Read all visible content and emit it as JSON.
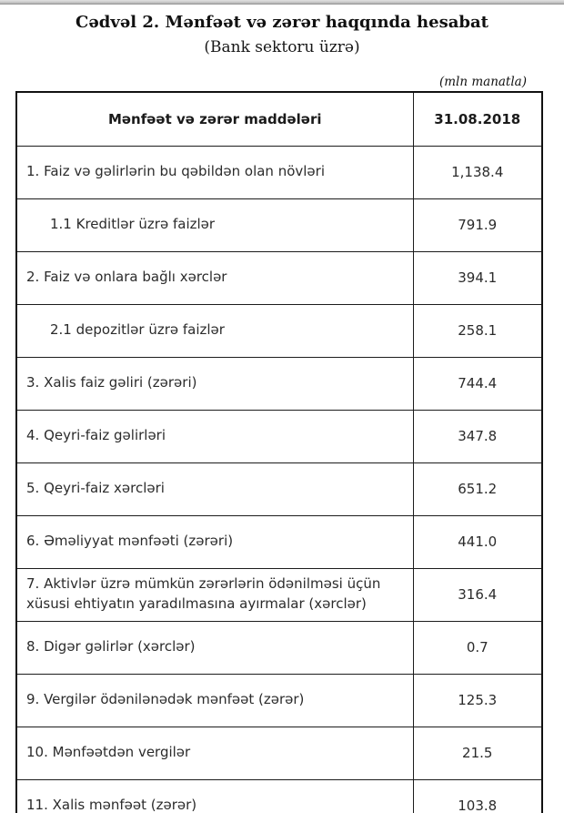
{
  "header": {
    "title": "Cədvəl 2. Mənfəət və zərər haqqında hesabat",
    "subtitle": "(Bank sektoru üzrə)"
  },
  "table": {
    "unit_note": "(mln manatla)",
    "columns": [
      "Mənfəət və zərər maddələri",
      "31.08.2018"
    ],
    "rows": [
      {
        "label": "1. Faiz və gəlirlərin bu qəbildən olan növləri",
        "value": "1,138.4",
        "indent": false
      },
      {
        "label": "1.1 Kreditlər üzrə faizlər",
        "value": "791.9",
        "indent": true
      },
      {
        "label": "2. Faiz və onlara bağlı xərclər",
        "value": "394.1",
        "indent": false
      },
      {
        "label": "2.1 depozitlər üzrə faizlər",
        "value": "258.1",
        "indent": true
      },
      {
        "label": "3. Xalis faiz gəliri (zərəri)",
        "value": "744.4",
        "indent": false
      },
      {
        "label": "4. Qeyri-faiz gəlirləri",
        "value": "347.8",
        "indent": false
      },
      {
        "label": "5. Qeyri-faiz xərcləri",
        "value": "651.2",
        "indent": false
      },
      {
        "label": "6. Əməliyyat mənfəəti (zərəri)",
        "value": "441.0",
        "indent": false
      },
      {
        "label": "7. Aktivlər üzrə mümkün zərərlərin ödənilməsi üçün xüsusi ehtiyatın yaradılmasına ayırmalar (xərclər)",
        "value": "316.4",
        "indent": false
      },
      {
        "label": "8. Digər gəlirlər (xərclər)",
        "value": "0.7",
        "indent": false
      },
      {
        "label": "9. Vergilər ödənilənədək mənfəət (zərər)",
        "value": "125.3",
        "indent": false
      },
      {
        "label": "10. Mənfəətdən vergilər",
        "value": "21.5",
        "indent": false
      },
      {
        "label": "11. Xalis mənfəət (zərər)",
        "value": "103.8",
        "indent": false
      }
    ]
  },
  "colors": {
    "background": "#ffffff",
    "text": "#2b2b2b",
    "border": "#1c1c1c",
    "top_bar": "#a9a9a9"
  }
}
